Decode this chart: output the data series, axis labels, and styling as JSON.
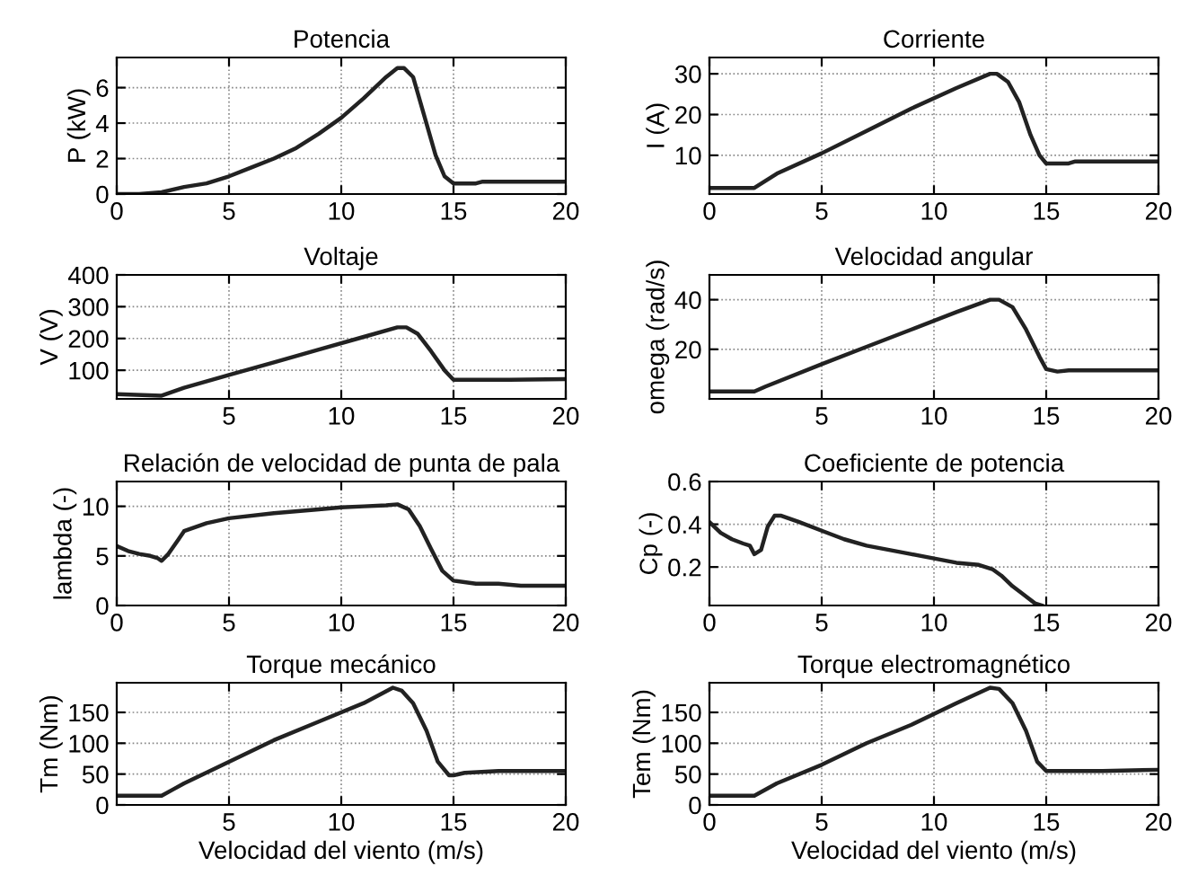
{
  "chart_data": [
    {
      "type": "line",
      "title": "Potencia",
      "ylabel": "P (kW)",
      "xlim": [
        0,
        20
      ],
      "xticks": [
        0,
        5,
        10,
        15,
        20
      ],
      "ylim": [
        0,
        7.7
      ],
      "yticks": [
        0,
        2,
        4,
        6
      ],
      "grid": true,
      "series": [
        {
          "color": "#222222",
          "x": [
            0,
            1,
            2,
            3,
            4,
            5,
            6,
            7,
            8,
            9,
            10,
            11,
            12,
            12.5,
            12.8,
            13.2,
            13.7,
            14.2,
            14.6,
            15,
            16,
            16.3,
            17,
            20
          ],
          "values": [
            0,
            0,
            0.1,
            0.4,
            0.6,
            1.0,
            1.5,
            2.0,
            2.6,
            3.4,
            4.3,
            5.4,
            6.6,
            7.1,
            7.1,
            6.6,
            4.4,
            2.2,
            1.0,
            0.6,
            0.6,
            0.7,
            0.7,
            0.7
          ]
        }
      ]
    },
    {
      "type": "line",
      "title": "Corriente",
      "ylabel": "I (A)",
      "xlim": [
        0,
        20
      ],
      "xticks": [
        0,
        5,
        10,
        15,
        20
      ],
      "ylim": [
        0.5,
        34
      ],
      "yticks": [
        10,
        20,
        30
      ],
      "grid": true,
      "series": [
        {
          "color": "#222222",
          "x": [
            0,
            2,
            3,
            5,
            7,
            9,
            11,
            12.5,
            12.8,
            13.3,
            13.8,
            14.3,
            14.7,
            15,
            16,
            16.3,
            20
          ],
          "values": [
            2,
            2,
            5.5,
            10.5,
            16,
            21.5,
            26.5,
            30,
            30,
            28,
            23,
            15,
            10,
            8,
            8,
            8.5,
            8.5
          ]
        }
      ]
    },
    {
      "type": "line",
      "title": "Voltaje",
      "ylabel": "V (V)",
      "xlim": [
        0,
        20
      ],
      "xticks": [
        5,
        10,
        15,
        20
      ],
      "ylim": [
        10,
        400
      ],
      "yticks": [
        100,
        200,
        300,
        400
      ],
      "grid": true,
      "series": [
        {
          "color": "#222222",
          "x": [
            0,
            2,
            3,
            5,
            7,
            9,
            11,
            12.5,
            12.9,
            13.4,
            14,
            14.6,
            15,
            17.5,
            20
          ],
          "values": [
            25,
            20,
            45,
            85,
            125,
            165,
            205,
            235,
            235,
            215,
            160,
            100,
            70,
            70,
            72
          ]
        }
      ]
    },
    {
      "type": "line",
      "title": "Velocidad angular",
      "ylabel": "omega (rad/s)",
      "xlim": [
        0,
        20
      ],
      "xticks": [
        5,
        10,
        15,
        20
      ],
      "ylim": [
        0,
        50
      ],
      "yticks": [
        20,
        40
      ],
      "grid": true,
      "series": [
        {
          "color": "#222222",
          "x": [
            0,
            2,
            2.5,
            5,
            7,
            9,
            11,
            12.5,
            12.9,
            13.5,
            14.1,
            14.7,
            15,
            15.5,
            16,
            20
          ],
          "values": [
            3,
            3,
            5,
            14,
            21,
            28,
            35,
            40,
            40,
            37,
            28,
            17,
            12,
            11,
            11.5,
            11.5
          ]
        }
      ]
    },
    {
      "type": "line",
      "title": "Relación de velocidad de punta de pala",
      "ylabel": "lambda (-)",
      "xlim": [
        0,
        20
      ],
      "xticks": [
        0,
        5,
        10,
        15,
        20
      ],
      "ylim": [
        0,
        12.5
      ],
      "yticks": [
        0,
        5,
        10
      ],
      "grid": true,
      "series": [
        {
          "color": "#222222",
          "x": [
            0,
            0.5,
            1,
            1.5,
            1.8,
            2,
            2.3,
            2.7,
            3,
            4,
            5,
            7,
            9,
            10,
            11,
            12,
            12.5,
            13,
            13.5,
            14,
            14.5,
            15,
            16,
            17,
            18,
            20
          ],
          "values": [
            6,
            5.5,
            5.2,
            5,
            4.8,
            4.5,
            5.2,
            6.5,
            7.5,
            8.3,
            8.8,
            9.3,
            9.7,
            9.9,
            10,
            10.1,
            10.2,
            9.7,
            8,
            5.7,
            3.5,
            2.5,
            2.2,
            2.2,
            2,
            2
          ]
        }
      ]
    },
    {
      "type": "line",
      "title": "Coeficiente de potencia",
      "ylabel": "Cp (-)",
      "xlim": [
        0,
        20
      ],
      "xticks": [
        0,
        5,
        10,
        15,
        20
      ],
      "ylim": [
        0.02,
        0.6
      ],
      "yticks": [
        0.2,
        0.4,
        0.6
      ],
      "grid": true,
      "series": [
        {
          "color": "#222222",
          "x": [
            0,
            0.5,
            1,
            1.5,
            1.8,
            2,
            2.3,
            2.6,
            2.9,
            3.2,
            4,
            5,
            6,
            7,
            8,
            9,
            10,
            11,
            12,
            12.6,
            13,
            13.5,
            14,
            14.5,
            14.8
          ],
          "values": [
            0.41,
            0.36,
            0.33,
            0.31,
            0.3,
            0.26,
            0.28,
            0.39,
            0.44,
            0.44,
            0.41,
            0.37,
            0.33,
            0.3,
            0.28,
            0.26,
            0.24,
            0.22,
            0.21,
            0.19,
            0.16,
            0.11,
            0.07,
            0.03,
            0.02
          ]
        }
      ]
    },
    {
      "type": "line",
      "title": "Torque mecánico",
      "ylabel": "Tm (Nm)",
      "xlabel": "Velocidad del viento (m/s)",
      "xlim": [
        0,
        20
      ],
      "xticks": [
        5,
        10,
        15,
        20
      ],
      "ylim": [
        0,
        198
      ],
      "yticks": [
        0,
        50,
        100,
        150
      ],
      "grid": true,
      "series": [
        {
          "color": "#222222",
          "x": [
            0,
            2,
            2.5,
            3,
            5,
            7,
            9,
            11,
            12.3,
            12.7,
            13.2,
            13.8,
            14.3,
            14.8,
            15,
            15.5,
            17,
            20
          ],
          "values": [
            15,
            15,
            25,
            35,
            70,
            105,
            135,
            165,
            190,
            185,
            165,
            120,
            70,
            48,
            48,
            52,
            55,
            55
          ]
        }
      ]
    },
    {
      "type": "line",
      "title": "Torque electromagnético",
      "ylabel": "Tem (Nm)",
      "xlabel": "Velocidad del viento (m/s)",
      "xlim": [
        0,
        20
      ],
      "xticks": [
        0,
        5,
        10,
        15,
        20
      ],
      "ylim": [
        0,
        198
      ],
      "yticks": [
        0,
        50,
        100,
        150
      ],
      "grid": true,
      "series": [
        {
          "color": "#222222",
          "x": [
            0,
            2,
            3,
            5,
            7,
            9,
            11,
            12.5,
            12.9,
            13.5,
            14.1,
            14.6,
            15,
            17.5,
            20
          ],
          "values": [
            15,
            15,
            35,
            65,
            100,
            130,
            165,
            190,
            188,
            165,
            120,
            70,
            55,
            55,
            57
          ]
        }
      ]
    }
  ]
}
